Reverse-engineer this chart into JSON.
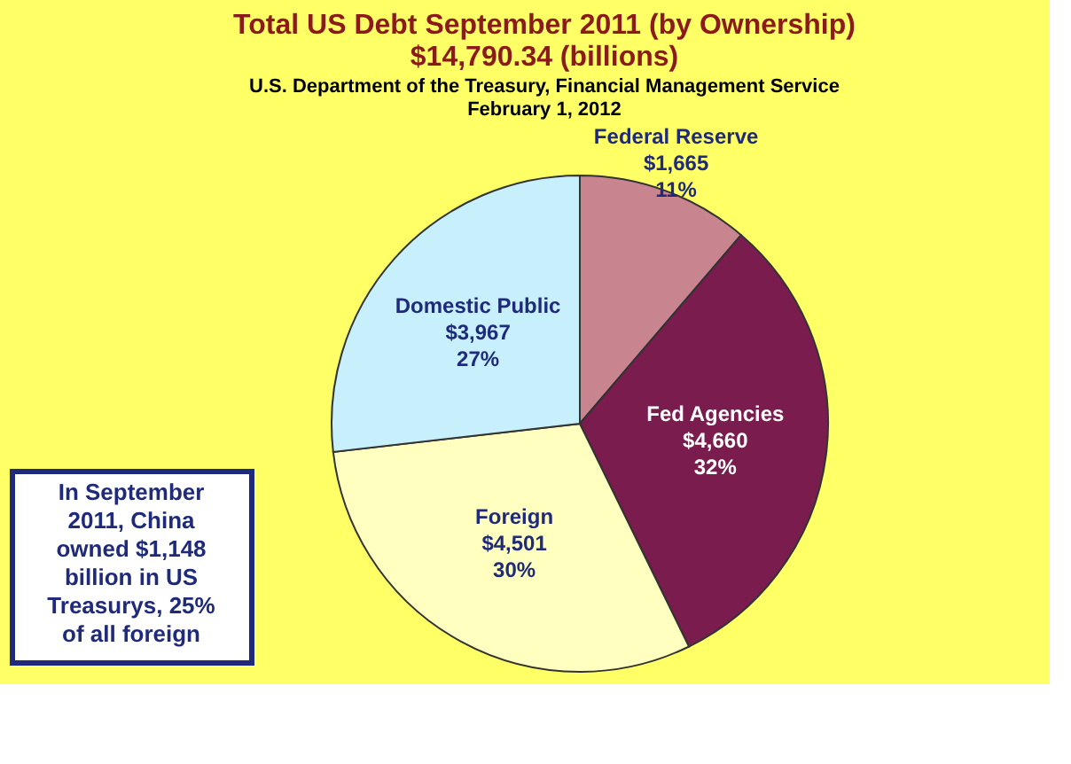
{
  "chart_data": {
    "type": "pie",
    "title": "Total US Debt September 2011 (by Ownership)\n$14,790.34 (billions)",
    "subtitle": "U.S. Department of the Treasury, Financial Management Service\nFebruary 1, 2012",
    "categories": [
      "Federal Reserve",
      "Fed Agencies",
      "Foreign",
      "Domestic Public"
    ],
    "values": [
      1665,
      4660,
      4501,
      3967
    ],
    "value_labels": [
      "$1,665\n11%",
      "$4,660\n32%",
      "$4,501\n30%",
      "$3,967\n27%"
    ],
    "colors": [
      "#c9858f",
      "#7b1c4e",
      "#ffffc0",
      "#c8f0fc"
    ],
    "legend": false,
    "annotations": [
      "In September 2011, China owned $1,148 billion in US Treasurys, 25% of all foreign"
    ]
  }
}
